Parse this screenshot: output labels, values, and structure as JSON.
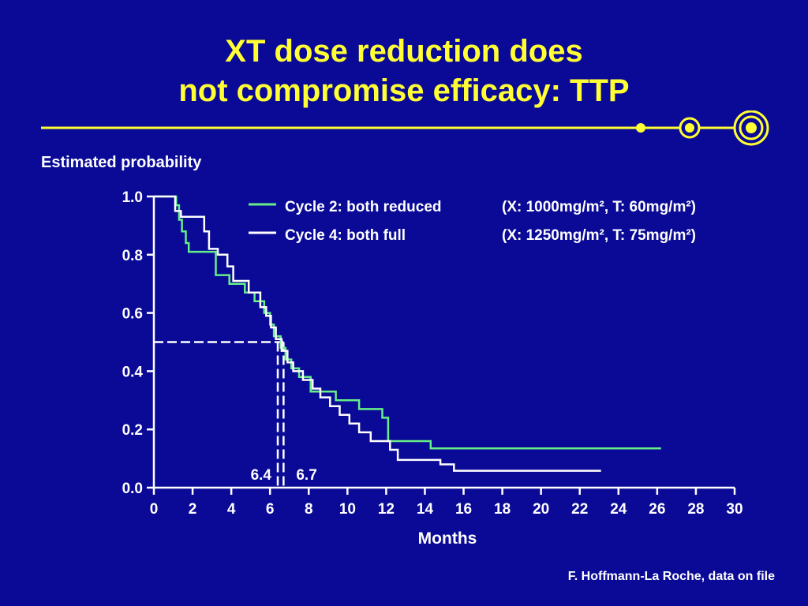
{
  "slide": {
    "title_line1": "XT dose reduction does",
    "title_line2": "not compromise efficacy: TTP",
    "credit": "F. Hoffmann-La Roche, data on file"
  },
  "colors": {
    "background": "#0a0a96",
    "title": "#ffff33",
    "decor": "#ffff33",
    "series_reduced": "#66ee88",
    "series_full": "#ffffff"
  },
  "chart_data": {
    "type": "line",
    "step": true,
    "ylabel": "Estimated probability",
    "xlabel": "Months",
    "xlim": [
      0,
      30
    ],
    "ylim": [
      0,
      1.0
    ],
    "xticks": [
      "0",
      "2",
      "4",
      "6",
      "8",
      "10",
      "12",
      "14",
      "16",
      "18",
      "20",
      "22",
      "24",
      "26",
      "28",
      "30"
    ],
    "yticks": [
      "0.0",
      "0.2",
      "0.4",
      "0.6",
      "0.8",
      "1.0"
    ],
    "legend_placement": "top-right",
    "median_reference": {
      "y": 0.5
    },
    "medians": [
      {
        "series": "Cycle 2: both reduced",
        "x": 6.4,
        "label": "6.4"
      },
      {
        "series": "Cycle 4: both full",
        "x": 6.7,
        "label": "6.7"
      }
    ],
    "series": [
      {
        "name": "Cycle 2: both reduced",
        "dose_label": "(X: 1000mg/m², T: 60mg/m²)",
        "color": "#66ee88",
        "x": [
          0,
          1.15,
          1.3,
          1.45,
          1.65,
          1.8,
          2.4,
          3.2,
          3.9,
          4.7,
          5.2,
          5.7,
          6.0,
          6.2,
          6.55,
          6.8,
          7.1,
          7.5,
          8.1,
          9.4,
          10.6,
          11.8,
          12.1,
          14.3,
          26.2
        ],
        "y": [
          1.0,
          0.97,
          0.92,
          0.88,
          0.84,
          0.81,
          0.81,
          0.73,
          0.7,
          0.67,
          0.64,
          0.6,
          0.56,
          0.52,
          0.48,
          0.44,
          0.41,
          0.38,
          0.33,
          0.3,
          0.27,
          0.24,
          0.16,
          0.135,
          0.135
        ]
      },
      {
        "name": "Cycle 4: both full",
        "dose_label": "(X: 1250mg/m², T: 75mg/m²)",
        "color": "#ffffff",
        "x": [
          0,
          1.1,
          1.4,
          2.6,
          2.85,
          3.3,
          3.8,
          4.1,
          4.9,
          5.5,
          5.8,
          6.05,
          6.3,
          6.6,
          6.9,
          7.2,
          7.7,
          8.2,
          8.6,
          9.1,
          9.6,
          10.1,
          10.6,
          11.2,
          12.2,
          12.6,
          14.8,
          15.5,
          23.1
        ],
        "y": [
          1.0,
          0.95,
          0.93,
          0.88,
          0.82,
          0.8,
          0.76,
          0.71,
          0.67,
          0.62,
          0.59,
          0.55,
          0.51,
          0.47,
          0.43,
          0.4,
          0.37,
          0.34,
          0.31,
          0.28,
          0.25,
          0.22,
          0.19,
          0.16,
          0.13,
          0.095,
          0.08,
          0.058,
          0.058
        ]
      }
    ]
  }
}
